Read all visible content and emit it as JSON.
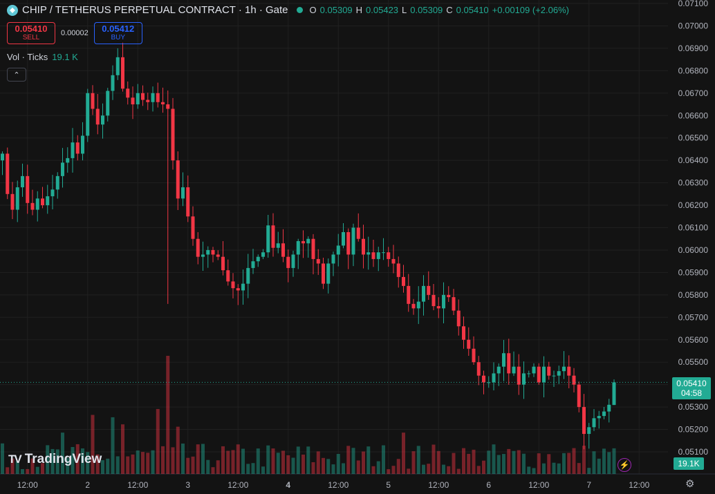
{
  "header": {
    "title": "CHIP / TETHERUS PERPETUAL CONTRACT · 1h · Gate",
    "ohlc": {
      "o_label": "O",
      "o": "0.05309",
      "h_label": "H",
      "h": "0.05423",
      "l_label": "L",
      "l": "0.05309",
      "c_label": "C",
      "c": "0.05410",
      "change": "+0.00109 (+2.06%)"
    }
  },
  "trade": {
    "sell_price": "0.05410",
    "sell_label": "SELL",
    "spread": "0.00002",
    "buy_price": "0.05412",
    "buy_label": "BUY"
  },
  "volume_legend": {
    "label": "Vol · Ticks",
    "value": "19.1 K"
  },
  "collapse_icon": "chevron-up-icon",
  "branding": {
    "mark": "TV",
    "name": "TradingView"
  },
  "last_price": {
    "price": "0.05410",
    "countdown": "04:58"
  },
  "volume_badge": "19.1K",
  "colors": {
    "up": "#22ab94",
    "down": "#f23645",
    "background": "#131313",
    "grid": "#202020",
    "text": "#d1d4dc"
  },
  "chart_data": {
    "type": "candlestick",
    "y_ticks": [
      "0.07100",
      "0.07000",
      "0.06900",
      "0.06800",
      "0.06700",
      "0.06600",
      "0.06500",
      "0.06400",
      "0.06300",
      "0.06200",
      "0.06100",
      "0.06000",
      "0.05900",
      "0.05800",
      "0.05700",
      "0.05600",
      "0.05500",
      "0.05400",
      "0.05300",
      "0.05200",
      "0.05100"
    ],
    "x_ticks": [
      {
        "label": "12:00",
        "bar": 5,
        "bold": false
      },
      {
        "label": "2",
        "bar": 17,
        "bold": false
      },
      {
        "label": "12:00",
        "bar": 27,
        "bold": false
      },
      {
        "label": "3",
        "bar": 37,
        "bold": false
      },
      {
        "label": "12:00",
        "bar": 47,
        "bold": false
      },
      {
        "label": "4",
        "bar": 57,
        "bold": true
      },
      {
        "label": "12:00",
        "bar": 67,
        "bold": false
      },
      {
        "label": "5",
        "bar": 77,
        "bold": false
      },
      {
        "label": "12:00",
        "bar": 87,
        "bold": false
      },
      {
        "label": "6",
        "bar": 97,
        "bold": false
      },
      {
        "label": "12:00",
        "bar": 107,
        "bold": false
      },
      {
        "label": "7",
        "bar": 117,
        "bold": false
      },
      {
        "label": "12:00",
        "bar": 127,
        "bold": false
      }
    ],
    "ylim": [
      0.0505,
      0.071
    ],
    "grid": true,
    "close_anchors": [
      [
        0,
        0.0643
      ],
      [
        1,
        0.0625
      ],
      [
        2,
        0.0618
      ],
      [
        3,
        0.0628
      ],
      [
        4,
        0.0633
      ],
      [
        5,
        0.0621
      ],
      [
        6,
        0.0618
      ],
      [
        7,
        0.0623
      ],
      [
        8,
        0.062
      ],
      [
        9,
        0.0624
      ],
      [
        10,
        0.0627
      ],
      [
        11,
        0.0633
      ],
      [
        12,
        0.0639
      ],
      [
        13,
        0.0641
      ],
      [
        14,
        0.0648
      ],
      [
        15,
        0.0643
      ],
      [
        16,
        0.0651
      ],
      [
        17,
        0.067
      ],
      [
        18,
        0.0663
      ],
      [
        19,
        0.0656
      ],
      [
        20,
        0.066
      ],
      [
        21,
        0.0671
      ],
      [
        22,
        0.0678
      ],
      [
        23,
        0.0686
      ],
      [
        24,
        0.0672
      ],
      [
        25,
        0.0668
      ],
      [
        26,
        0.0665
      ],
      [
        27,
        0.067
      ],
      [
        28,
        0.0667
      ],
      [
        29,
        0.0666
      ],
      [
        30,
        0.067
      ],
      [
        31,
        0.0666
      ],
      [
        32,
        0.0665
      ],
      [
        33,
        0.0663
      ],
      [
        34,
        0.064
      ],
      [
        35,
        0.0623
      ],
      [
        36,
        0.0628
      ],
      [
        37,
        0.0615
      ],
      [
        38,
        0.0605
      ],
      [
        39,
        0.0597
      ],
      [
        40,
        0.0598
      ],
      [
        41,
        0.06
      ],
      [
        42,
        0.0598
      ],
      [
        43,
        0.0597
      ],
      [
        44,
        0.0591
      ],
      [
        45,
        0.0586
      ],
      [
        46,
        0.0583
      ],
      [
        47,
        0.0582
      ],
      [
        48,
        0.0585
      ],
      [
        49,
        0.0592
      ],
      [
        50,
        0.0595
      ],
      [
        51,
        0.0597
      ],
      [
        52,
        0.0599
      ],
      [
        53,
        0.0611
      ],
      [
        54,
        0.0601
      ],
      [
        55,
        0.0603
      ],
      [
        56,
        0.0597
      ],
      [
        57,
        0.0592
      ],
      [
        58,
        0.0598
      ],
      [
        59,
        0.0604
      ],
      [
        60,
        0.0603
      ],
      [
        61,
        0.0605
      ],
      [
        62,
        0.0596
      ],
      [
        63,
        0.0594
      ],
      [
        64,
        0.0585
      ],
      [
        65,
        0.0594
      ],
      [
        66,
        0.0598
      ],
      [
        67,
        0.0602
      ],
      [
        68,
        0.0608
      ],
      [
        69,
        0.0598
      ],
      [
        70,
        0.061
      ],
      [
        71,
        0.0605
      ],
      [
        72,
        0.0598
      ],
      [
        73,
        0.0599
      ],
      [
        74,
        0.0596
      ],
      [
        75,
        0.0599
      ],
      [
        76,
        0.0599
      ],
      [
        77,
        0.0596
      ],
      [
        78,
        0.0594
      ],
      [
        79,
        0.0588
      ],
      [
        80,
        0.0584
      ],
      [
        81,
        0.0576
      ],
      [
        82,
        0.0574
      ],
      [
        83,
        0.0577
      ],
      [
        84,
        0.0584
      ],
      [
        85,
        0.058
      ],
      [
        86,
        0.0575
      ],
      [
        87,
        0.0574
      ],
      [
        88,
        0.058
      ],
      [
        89,
        0.0579
      ],
      [
        90,
        0.0573
      ],
      [
        91,
        0.0566
      ],
      [
        92,
        0.056
      ],
      [
        93,
        0.0556
      ],
      [
        94,
        0.055
      ],
      [
        95,
        0.0544
      ],
      [
        96,
        0.0541
      ],
      [
        97,
        0.0541
      ],
      [
        98,
        0.0545
      ],
      [
        99,
        0.0548
      ],
      [
        100,
        0.0554
      ],
      [
        101,
        0.0545
      ],
      [
        102,
        0.0548
      ],
      [
        103,
        0.054
      ],
      [
        104,
        0.0545
      ],
      [
        105,
        0.0545
      ],
      [
        106,
        0.0548
      ],
      [
        107,
        0.0541
      ],
      [
        108,
        0.0548
      ],
      [
        109,
        0.0544
      ],
      [
        110,
        0.0544
      ],
      [
        111,
        0.0546
      ],
      [
        112,
        0.0548
      ],
      [
        113,
        0.0544
      ],
      [
        114,
        0.054
      ],
      [
        115,
        0.053
      ],
      [
        116,
        0.0518
      ],
      [
        117,
        0.0521
      ],
      [
        118,
        0.0525
      ],
      [
        119,
        0.0526
      ],
      [
        120,
        0.0528
      ],
      [
        121,
        0.0531
      ],
      [
        122,
        0.0541
      ]
    ],
    "volume_spikes": [
      [
        33,
        1.0
      ],
      [
        31,
        0.55
      ],
      [
        35,
        0.4
      ],
      [
        80,
        0.35
      ],
      [
        24,
        0.42
      ],
      [
        22,
        0.48
      ],
      [
        12,
        0.35
      ],
      [
        18,
        0.5
      ]
    ]
  }
}
